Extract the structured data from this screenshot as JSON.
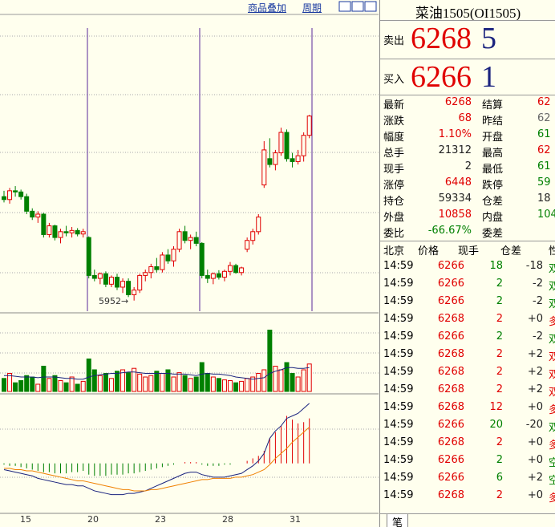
{
  "toolbar": {
    "overlay": "商品叠加",
    "period": "周期"
  },
  "chart_data": {
    "type": "candlestick",
    "ylim": [
      5931,
      6442
    ],
    "up_color": "#e00000",
    "down_color": "#008000",
    "low_marker": "5952→",
    "x_labels": [
      "15",
      "20",
      "23",
      "28",
      "31"
    ],
    "candles": [
      {
        "o": 6130,
        "h": 6140,
        "l": 6120,
        "c": 6125
      },
      {
        "o": 6125,
        "h": 6145,
        "l": 6118,
        "c": 6140
      },
      {
        "o": 6140,
        "h": 6148,
        "l": 6130,
        "c": 6138
      },
      {
        "o": 6138,
        "h": 6142,
        "l": 6125,
        "c": 6130
      },
      {
        "o": 6130,
        "h": 6135,
        "l": 6100,
        "c": 6105
      },
      {
        "o": 6105,
        "h": 6110,
        "l": 6090,
        "c": 6095
      },
      {
        "o": 6095,
        "h": 6105,
        "l": 6085,
        "c": 6100
      },
      {
        "o": 6100,
        "h": 6102,
        "l": 6060,
        "c": 6065
      },
      {
        "o": 6065,
        "h": 6085,
        "l": 6060,
        "c": 6080
      },
      {
        "o": 6080,
        "h": 6082,
        "l": 6055,
        "c": 6060
      },
      {
        "o": 6060,
        "h": 6075,
        "l": 6050,
        "c": 6070
      },
      {
        "o": 6070,
        "h": 6080,
        "l": 6062,
        "c": 6068
      },
      {
        "o": 6068,
        "h": 6078,
        "l": 6060,
        "c": 6072
      },
      {
        "o": 6072,
        "h": 6076,
        "l": 6062,
        "c": 6066
      },
      {
        "o": 6066,
        "h": 6075,
        "l": 6060,
        "c": 6070
      },
      {
        "o": 6060,
        "h": 6062,
        "l": 5990,
        "c": 5995
      },
      {
        "o": 5995,
        "h": 6005,
        "l": 5985,
        "c": 5990
      },
      {
        "o": 5990,
        "h": 6000,
        "l": 5980,
        "c": 5998
      },
      {
        "o": 5998,
        "h": 6002,
        "l": 5975,
        "c": 5980
      },
      {
        "o": 5980,
        "h": 5995,
        "l": 5975,
        "c": 5992
      },
      {
        "o": 5992,
        "h": 5998,
        "l": 5970,
        "c": 5975
      },
      {
        "o": 5975,
        "h": 5990,
        "l": 5965,
        "c": 5985
      },
      {
        "o": 5985,
        "h": 5990,
        "l": 5958,
        "c": 5962
      },
      {
        "o": 5962,
        "h": 5975,
        "l": 5952,
        "c": 5970
      },
      {
        "o": 5970,
        "h": 5998,
        "l": 5965,
        "c": 5995
      },
      {
        "o": 5995,
        "h": 6005,
        "l": 5985,
        "c": 6000
      },
      {
        "o": 6000,
        "h": 6015,
        "l": 5990,
        "c": 6010
      },
      {
        "o": 6010,
        "h": 6025,
        "l": 6000,
        "c": 6005
      },
      {
        "o": 6005,
        "h": 6035,
        "l": 6000,
        "c": 6030
      },
      {
        "o": 6030,
        "h": 6040,
        "l": 6015,
        "c": 6020
      },
      {
        "o": 6020,
        "h": 6045,
        "l": 6010,
        "c": 6040
      },
      {
        "o": 6040,
        "h": 6075,
        "l": 6035,
        "c": 6070
      },
      {
        "o": 6070,
        "h": 6080,
        "l": 6050,
        "c": 6055
      },
      {
        "o": 6055,
        "h": 6065,
        "l": 6040,
        "c": 6060
      },
      {
        "o": 6060,
        "h": 6070,
        "l": 6045,
        "c": 6050
      },
      {
        "o": 6050,
        "h": 6052,
        "l": 5990,
        "c": 5995
      },
      {
        "o": 5995,
        "h": 6005,
        "l": 5982,
        "c": 5990
      },
      {
        "o": 5990,
        "h": 6000,
        "l": 5980,
        "c": 5998
      },
      {
        "o": 5998,
        "h": 6004,
        "l": 5988,
        "c": 5992
      },
      {
        "o": 5992,
        "h": 6005,
        "l": 5985,
        "c": 6002
      },
      {
        "o": 6002,
        "h": 6018,
        "l": 5995,
        "c": 6012
      },
      {
        "o": 6012,
        "h": 6015,
        "l": 5998,
        "c": 6000
      },
      {
        "o": 6000,
        "h": 6010,
        "l": 5995,
        "c": 6008
      },
      {
        "o": 6040,
        "h": 6060,
        "l": 6035,
        "c": 6055
      },
      {
        "o": 6055,
        "h": 6075,
        "l": 6048,
        "c": 6070
      },
      {
        "o": 6070,
        "h": 6100,
        "l": 6065,
        "c": 6095
      },
      {
        "o": 6150,
        "h": 6225,
        "l": 6145,
        "c": 6210
      },
      {
        "o": 6195,
        "h": 6230,
        "l": 6180,
        "c": 6185
      },
      {
        "o": 6185,
        "h": 6210,
        "l": 6175,
        "c": 6205
      },
      {
        "o": 6205,
        "h": 6248,
        "l": 6200,
        "c": 6240
      },
      {
        "o": 6240,
        "h": 6245,
        "l": 6190,
        "c": 6195
      },
      {
        "o": 6195,
        "h": 6205,
        "l": 6180,
        "c": 6190
      },
      {
        "o": 6190,
        "h": 6210,
        "l": 6185,
        "c": 6200
      },
      {
        "o": 6200,
        "h": 6240,
        "l": 6190,
        "c": 6235
      },
      {
        "o": 6235,
        "h": 6270,
        "l": 6230,
        "c": 6268
      }
    ],
    "volume": {
      "ylim": [
        0,
        100
      ],
      "values": [
        18,
        25,
        12,
        15,
        22,
        20,
        10,
        35,
        18,
        22,
        15,
        12,
        20,
        10,
        14,
        45,
        30,
        22,
        25,
        18,
        28,
        30,
        26,
        32,
        24,
        20,
        22,
        28,
        25,
        30,
        20,
        26,
        22,
        18,
        20,
        40,
        25,
        20,
        18,
        16,
        15,
        12,
        14,
        18,
        20,
        25,
        30,
        85,
        35,
        30,
        40,
        25,
        20,
        30,
        38
      ],
      "ma": {
        "color": "#1a237e",
        "values": [
          22,
          22,
          21,
          20,
          20,
          20,
          19,
          20,
          20,
          20,
          19,
          18,
          18,
          17,
          17,
          20,
          22,
          23,
          24,
          25,
          25,
          26,
          27,
          27,
          26,
          25,
          25,
          25,
          25,
          25,
          24,
          24,
          24,
          23,
          22,
          24,
          25,
          24,
          24,
          23,
          22,
          20,
          19,
          18,
          17,
          18,
          19,
          25,
          28,
          30,
          33,
          33,
          32,
          32,
          33
        ]
      }
    },
    "macd": {
      "ylim": [
        -40,
        55
      ],
      "bars": [
        -1,
        -2,
        -2,
        -3,
        -4,
        -5,
        -6,
        -7,
        -7,
        -8,
        -8,
        -8,
        -7,
        -7,
        -6,
        -9,
        -10,
        -10,
        -10,
        -9,
        -9,
        -9,
        -8,
        -8,
        -7,
        -6,
        -5,
        -4,
        -3,
        -2,
        -1,
        0,
        1,
        1,
        1,
        -1,
        -2,
        -2,
        -2,
        -1,
        -1,
        0,
        0,
        2,
        4,
        6,
        10,
        20,
        25,
        30,
        38,
        35,
        32,
        33,
        36
      ],
      "dif": {
        "color": "#1a237e",
        "values": [
          -5,
          -6,
          -7,
          -8,
          -9,
          -10,
          -12,
          -13,
          -14,
          -15,
          -16,
          -17,
          -17,
          -18,
          -18,
          -20,
          -22,
          -23,
          -24,
          -25,
          -25,
          -25,
          -24,
          -24,
          -23,
          -22,
          -20,
          -18,
          -16,
          -14,
          -12,
          -10,
          -8,
          -7,
          -7,
          -9,
          -10,
          -11,
          -11,
          -11,
          -10,
          -9,
          -8,
          -5,
          -2,
          2,
          8,
          20,
          26,
          30,
          36,
          38,
          40,
          44,
          48
        ]
      },
      "dea": {
        "color": "#f08000",
        "values": [
          -4,
          -4,
          -5,
          -5,
          -6,
          -6,
          -7,
          -8,
          -9,
          -10,
          -11,
          -12,
          -13,
          -14,
          -14,
          -15,
          -16,
          -17,
          -18,
          -19,
          -20,
          -21,
          -21,
          -22,
          -22,
          -22,
          -21,
          -21,
          -20,
          -19,
          -18,
          -17,
          -16,
          -15,
          -14,
          -13,
          -13,
          -12,
          -12,
          -12,
          -12,
          -11,
          -11,
          -10,
          -9,
          -7,
          -5,
          -1,
          4,
          8,
          12,
          17,
          21,
          25,
          29
        ]
      }
    }
  },
  "quote": {
    "title": "菜油1505(OI1505)",
    "ask": {
      "label": "卖出",
      "price": "6268",
      "qty": "5"
    },
    "bid": {
      "label": "买入",
      "price": "6266",
      "qty": "1"
    },
    "stats": [
      [
        {
          "label": "最新",
          "value": "6268",
          "color": "#e00000"
        },
        {
          "label": "结算",
          "value": "62",
          "color": "#e00000"
        }
      ],
      [
        {
          "label": "涨跌",
          "value": "68",
          "color": "#e00000"
        },
        {
          "label": "昨结",
          "value": "62",
          "color": "#666666"
        }
      ],
      [
        {
          "label": "幅度",
          "value": "1.10%",
          "color": "#e00000"
        },
        {
          "label": "开盘",
          "value": "61",
          "color": "#008000"
        }
      ],
      [
        {
          "label": "总手",
          "value": "21312",
          "color": "#222222"
        },
        {
          "label": "最高",
          "value": "62",
          "color": "#e00000"
        }
      ],
      [
        {
          "label": "现手",
          "value": "2",
          "color": "#222222"
        },
        {
          "label": "最低",
          "value": "61",
          "color": "#008000"
        }
      ],
      [
        {
          "label": "涨停",
          "value": "6448",
          "color": "#e00000"
        },
        {
          "label": "跌停",
          "value": "59",
          "color": "#008000"
        }
      ],
      [
        {
          "label": "持仓",
          "value": "59334",
          "color": "#222222"
        },
        {
          "label": "仓差",
          "value": "18",
          "color": "#222222"
        }
      ],
      [
        {
          "label": "外盘",
          "value": "10858",
          "color": "#e00000"
        },
        {
          "label": "内盘",
          "value": "104",
          "color": "#008000"
        }
      ],
      [
        {
          "label": "委比",
          "value": "-66.67%",
          "color": "#008000"
        },
        {
          "label": "委差",
          "value": "",
          "color": "#222222"
        }
      ]
    ],
    "trades": {
      "header": [
        "北京",
        "价格",
        "现手",
        "仓差",
        "性质"
      ],
      "rows": [
        {
          "time": "14:59",
          "price": "6266",
          "qty": "18",
          "change": "-18",
          "side": "双",
          "color": "#008000"
        },
        {
          "time": "14:59",
          "price": "6266",
          "qty": "2",
          "change": "-2",
          "side": "双",
          "color": "#008000"
        },
        {
          "time": "14:59",
          "price": "6266",
          "qty": "2",
          "change": "-2",
          "side": "双",
          "color": "#008000"
        },
        {
          "time": "14:59",
          "price": "6268",
          "qty": "2",
          "change": "+0",
          "side": "多",
          "color": "#e00000"
        },
        {
          "time": "14:59",
          "price": "6266",
          "qty": "2",
          "change": "-2",
          "side": "双",
          "color": "#008000"
        },
        {
          "time": "14:59",
          "price": "6268",
          "qty": "2",
          "change": "+2",
          "side": "双",
          "color": "#e00000"
        },
        {
          "time": "14:59",
          "price": "6268",
          "qty": "2",
          "change": "+2",
          "side": "双",
          "color": "#e00000"
        },
        {
          "time": "14:59",
          "price": "6268",
          "qty": "2",
          "change": "+2",
          "side": "双",
          "color": "#e00000"
        },
        {
          "time": "14:59",
          "price": "6268",
          "qty": "12",
          "change": "+0",
          "side": "多",
          "color": "#e00000"
        },
        {
          "time": "14:59",
          "price": "6266",
          "qty": "20",
          "change": "-20",
          "side": "双",
          "color": "#008000"
        },
        {
          "time": "14:59",
          "price": "6268",
          "qty": "2",
          "change": "+0",
          "side": "多",
          "color": "#e00000"
        },
        {
          "time": "14:59",
          "price": "6266",
          "qty": "2",
          "change": "+0",
          "side": "空",
          "color": "#008000"
        },
        {
          "time": "14:59",
          "price": "6266",
          "qty": "6",
          "change": "+2",
          "side": "空",
          "color": "#008000"
        },
        {
          "time": "14:59",
          "price": "6268",
          "qty": "2",
          "change": "+0",
          "side": "多",
          "color": "#e00000"
        }
      ]
    },
    "tab": "笔"
  }
}
